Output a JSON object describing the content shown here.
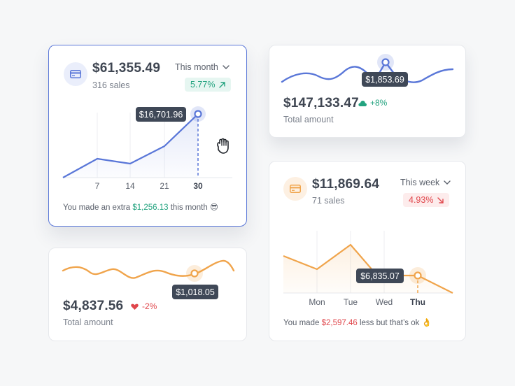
{
  "colors": {
    "blue": "#5a77d8",
    "orange": "#f0a44b",
    "green": "#23a37f",
    "red": "#e0474c",
    "tooltip": "#3f4857"
  },
  "card_month": {
    "icon": "credit-card-icon",
    "amount": "$61,355.49",
    "sales": "316 sales",
    "period": "This month",
    "badge": "5.77%",
    "tooltip": "$16,701.96",
    "footer_prefix": "You made an extra",
    "footer_value": "$1,256.13",
    "footer_suffix": "this month 😎",
    "chart_data": {
      "type": "line",
      "x": [
        1,
        7,
        14,
        21,
        30
      ],
      "values": [
        1,
        3.3,
        2.6,
        6.1,
        12.7
      ],
      "ticks": [
        "7",
        "14",
        "21",
        "30"
      ],
      "highlight": "30"
    }
  },
  "card_total_top": {
    "tooltip": "$1,853.69",
    "amount": "$147,133.47",
    "delta": "+8%",
    "label": "Total amount"
  },
  "card_total_bottom": {
    "tooltip": "$1,018.05",
    "amount": "$4,837.56",
    "delta": "-2%",
    "label": "Total amount"
  },
  "card_week": {
    "icon": "credit-card-icon",
    "amount": "$11,869.64",
    "sales": "71 sales",
    "period": "This week",
    "badge": "4.93%",
    "tooltip": "$6,835.07",
    "footer_prefix": "You made",
    "footer_value": "$2,597.46",
    "footer_suffix": "less but that’s ok 👌",
    "chart_data": {
      "type": "line",
      "categories": [
        "Mon",
        "Tue",
        "Wed",
        "Thu"
      ],
      "ticks": [
        "Mon",
        "Tue",
        "Wed",
        "Thu"
      ],
      "highlight": "Thu"
    }
  }
}
